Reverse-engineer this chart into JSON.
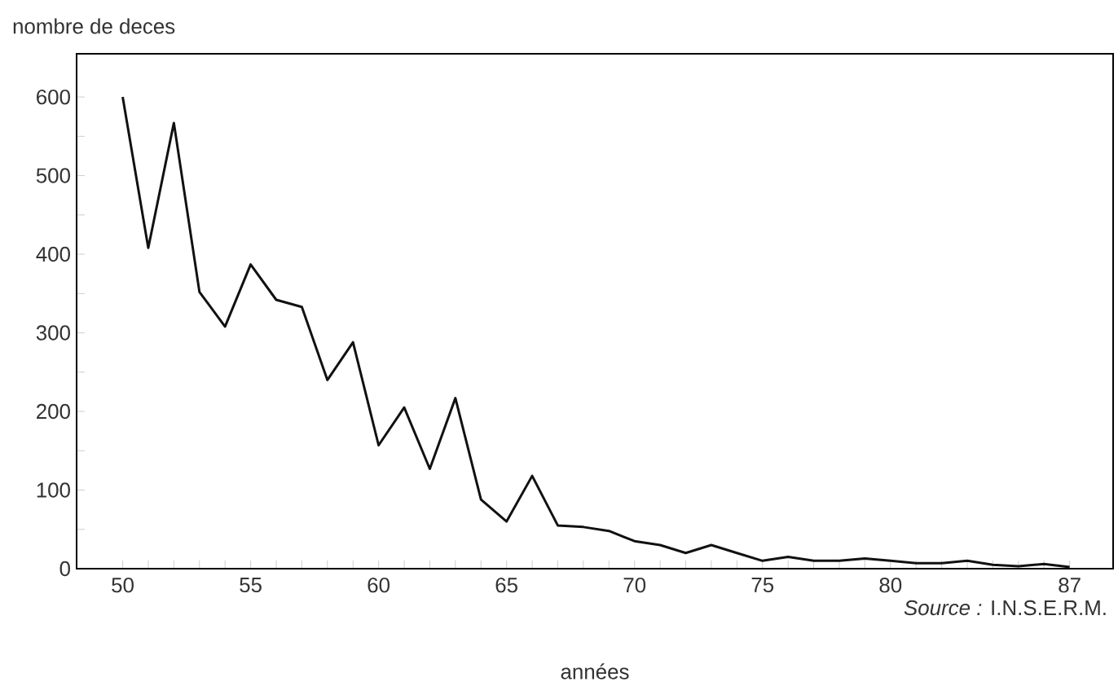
{
  "chart_data": {
    "type": "line",
    "ylabel": "nombre de deces",
    "xlabel": "années",
    "annotations": [
      "*Source :* I.N.S.E.R.M."
    ],
    "x": [
      50,
      51,
      52,
      53,
      54,
      55,
      56,
      57,
      58,
      59,
      60,
      61,
      62,
      63,
      64,
      65,
      66,
      67,
      68,
      69,
      70,
      71,
      72,
      73,
      74,
      75,
      76,
      77,
      78,
      79,
      80,
      81,
      82,
      83,
      84,
      85,
      86,
      87
    ],
    "series": [
      {
        "color": "#111111",
        "values": [
          600,
          408,
          567,
          352,
          308,
          387,
          342,
          333,
          240,
          288,
          157,
          205,
          127,
          217,
          88,
          60,
          118,
          55,
          53,
          48,
          35,
          30,
          20,
          30,
          20,
          10,
          15,
          10,
          10,
          13,
          10,
          7,
          7,
          10,
          5,
          3,
          6,
          2
        ]
      }
    ],
    "marker": "none",
    "line_style": "solid",
    "xlim": [
      48.2,
      88.7
    ],
    "ylim": [
      0,
      655
    ],
    "xticks": [
      50,
      {
        "value": 51,
        "label": null
      },
      {
        "value": 52,
        "label": null
      },
      {
        "value": 53,
        "label": null
      },
      {
        "value": 54,
        "label": null
      },
      55,
      {
        "value": 56,
        "label": null
      },
      {
        "value": 57,
        "label": null
      },
      {
        "value": 58,
        "label": null
      },
      {
        "value": 59,
        "label": null
      },
      60,
      {
        "value": 61,
        "label": null
      },
      {
        "value": 62,
        "label": null
      },
      {
        "value": 63,
        "label": null
      },
      {
        "value": 64,
        "label": null
      },
      65,
      {
        "value": 66,
        "label": null
      },
      {
        "value": 67,
        "label": null
      },
      {
        "value": 68,
        "label": null
      },
      {
        "value": 69,
        "label": null
      },
      70,
      {
        "value": 71,
        "label": null
      },
      {
        "value": 72,
        "label": null
      },
      {
        "value": 73,
        "label": null
      },
      {
        "value": 74,
        "label": null
      },
      75,
      {
        "value": 76,
        "label": null
      },
      {
        "value": 77,
        "label": null
      },
      {
        "value": 78,
        "label": null
      },
      {
        "value": 79,
        "label": null
      },
      80,
      {
        "value": 81,
        "label": null
      },
      {
        "value": 82,
        "label": null
      },
      {
        "value": 83,
        "label": null
      },
      {
        "value": 84,
        "label": null
      },
      {
        "value": 85,
        "label": null
      },
      {
        "value": 86,
        "label": null
      },
      87
    ],
    "yticks": [
      0,
      {
        "value": 50,
        "label": null
      },
      100,
      {
        "value": 150,
        "label": null
      },
      200,
      {
        "value": 250,
        "label": null
      },
      300,
      {
        "value": 350,
        "label": null
      },
      400,
      {
        "value": 450,
        "label": null
      },
      500,
      {
        "value": 550,
        "label": null
      },
      600
    ]
  }
}
